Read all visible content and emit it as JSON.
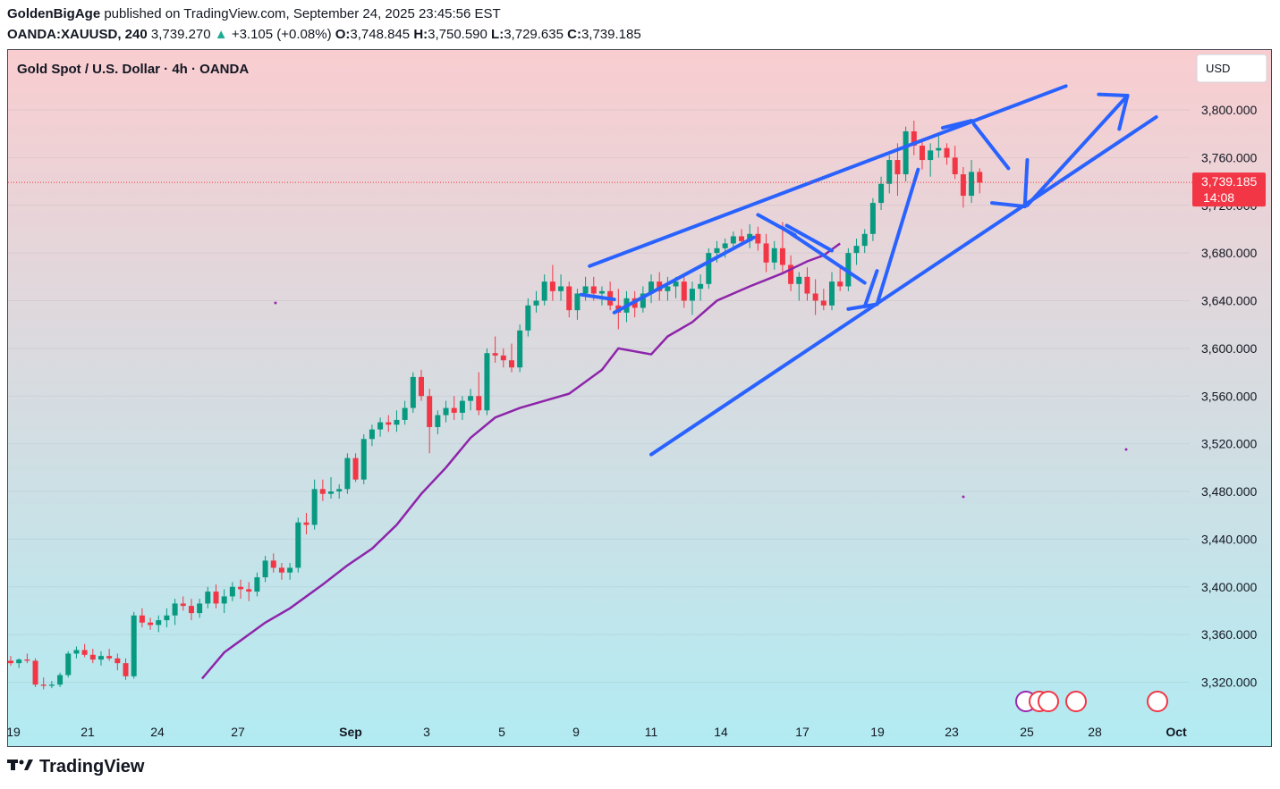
{
  "header": {
    "author": "GoldenBigAge",
    "published_text": "published on TradingView.com, September 24, 2025 23:45:56 EST",
    "symbol": "OANDA:XAUUSD, 240",
    "last": "3,739.270",
    "change_arrow": "▲",
    "change": "+3.105 (+0.08%)",
    "o_label": "O:",
    "o": "3,748.845",
    "h_label": "H:",
    "h": "3,750.590",
    "l_label": "L:",
    "l": "3,729.635",
    "c_label": "C:",
    "c": "3,739.185"
  },
  "chart_data": {
    "type": "candlestick",
    "title": "Gold Spot / U.S. Dollar · 4h · OANDA",
    "currency_button": "USD",
    "y_ticks": [
      3320,
      3360,
      3400,
      3440,
      3480,
      3520,
      3560,
      3600,
      3640,
      3680,
      3720,
      3760,
      3800
    ],
    "y_tick_labels": [
      "3,320.000",
      "3,360.000",
      "3,400.000",
      "3,440.000",
      "3,480.000",
      "3,520.000",
      "3,560.000",
      "3,600.000",
      "3,640.000",
      "3,680.000",
      "3,720.000",
      "3,760.000",
      "3,800.000"
    ],
    "x_labels": [
      "19",
      "21",
      "24",
      "27",
      "Sep",
      "3",
      "5",
      "9",
      "11",
      "14",
      "17",
      "19",
      "23",
      "25",
      "28",
      "Oct"
    ],
    "current_price_label": "3,739.185",
    "countdown_label": "14:08",
    "current_price": 3739.185,
    "background_gradient": [
      "#f9cdd0",
      "#b2ebf2"
    ],
    "colors": {
      "up": "#089981",
      "down": "#f23645",
      "ma": "#8e24aa",
      "drawings": "#2962ff",
      "price_tag": "#f23645"
    },
    "moving_average": [
      [
        23.3,
        3323
      ],
      [
        26,
        3345
      ],
      [
        29,
        3360
      ],
      [
        31,
        3370
      ],
      [
        34,
        3382
      ],
      [
        38,
        3402
      ],
      [
        41,
        3418
      ],
      [
        44,
        3432
      ],
      [
        47,
        3452
      ],
      [
        50,
        3478
      ],
      [
        53,
        3500
      ],
      [
        56,
        3525
      ],
      [
        59,
        3542
      ],
      [
        62,
        3550
      ],
      [
        65,
        3556
      ],
      [
        68,
        3562
      ],
      [
        72,
        3582
      ],
      [
        74,
        3600
      ],
      [
        75.5,
        3633
      ],
      [
        76.8,
        3565
      ],
      [
        78,
        3595
      ],
      [
        80,
        3610
      ],
      [
        83,
        3622
      ],
      [
        86,
        3640
      ],
      [
        90,
        3652
      ],
      [
        94,
        3663
      ],
      [
        97,
        3673
      ],
      [
        99,
        3678
      ],
      [
        101,
        3688
      ]
    ],
    "candles": [
      [
        0,
        3338,
        3342,
        3334,
        3336
      ],
      [
        1,
        3336,
        3340,
        3332,
        3339
      ],
      [
        2,
        3339,
        3344,
        3336,
        3338
      ],
      [
        3,
        3338,
        3340,
        3316,
        3318
      ],
      [
        4,
        3318,
        3324,
        3314,
        3317
      ],
      [
        5,
        3317,
        3321,
        3315,
        3318
      ],
      [
        6,
        3318,
        3328,
        3316,
        3326
      ],
      [
        7,
        3326,
        3346,
        3324,
        3344
      ],
      [
        8,
        3344,
        3350,
        3340,
        3347
      ],
      [
        9,
        3347,
        3352,
        3341,
        3343
      ],
      [
        10,
        3343,
        3348,
        3336,
        3339
      ],
      [
        11,
        3339,
        3346,
        3334,
        3342
      ],
      [
        12,
        3342,
        3348,
        3338,
        3340
      ],
      [
        13,
        3340,
        3344,
        3330,
        3336
      ],
      [
        14,
        3336,
        3340,
        3322,
        3325
      ],
      [
        15,
        3325,
        3379,
        3323,
        3376
      ],
      [
        16,
        3376,
        3382,
        3366,
        3370
      ],
      [
        17,
        3370,
        3374,
        3364,
        3368
      ],
      [
        18,
        3368,
        3376,
        3362,
        3372
      ],
      [
        19,
        3372,
        3382,
        3366,
        3376
      ],
      [
        20,
        3376,
        3390,
        3368,
        3386
      ],
      [
        21,
        3386,
        3392,
        3380,
        3384
      ],
      [
        22,
        3384,
        3390,
        3372,
        3378
      ],
      [
        23,
        3378,
        3390,
        3374,
        3386
      ],
      [
        24,
        3386,
        3400,
        3382,
        3396
      ],
      [
        25,
        3396,
        3402,
        3382,
        3386
      ],
      [
        26,
        3386,
        3398,
        3378,
        3392
      ],
      [
        27,
        3392,
        3404,
        3388,
        3400
      ],
      [
        28,
        3400,
        3406,
        3390,
        3398
      ],
      [
        29,
        3398,
        3404,
        3388,
        3396
      ],
      [
        30,
        3396,
        3412,
        3392,
        3408
      ],
      [
        31,
        3408,
        3426,
        3404,
        3422
      ],
      [
        32,
        3422,
        3428,
        3412,
        3416
      ],
      [
        33,
        3416,
        3420,
        3406,
        3412
      ],
      [
        34,
        3412,
        3420,
        3406,
        3416
      ],
      [
        35,
        3416,
        3458,
        3412,
        3454
      ],
      [
        36,
        3454,
        3462,
        3444,
        3452
      ],
      [
        37,
        3452,
        3490,
        3448,
        3482
      ],
      [
        38,
        3482,
        3490,
        3472,
        3478
      ],
      [
        39,
        3478,
        3492,
        3474,
        3480
      ],
      [
        40,
        3480,
        3486,
        3474,
        3482
      ],
      [
        41,
        3482,
        3512,
        3478,
        3508
      ],
      [
        42,
        3508,
        3512,
        3488,
        3490
      ],
      [
        43,
        3490,
        3528,
        3486,
        3524
      ],
      [
        44,
        3524,
        3536,
        3518,
        3532
      ],
      [
        45,
        3532,
        3542,
        3526,
        3538
      ],
      [
        46,
        3538,
        3544,
        3530,
        3536
      ],
      [
        47,
        3536,
        3548,
        3530,
        3540
      ],
      [
        48,
        3540,
        3556,
        3536,
        3550
      ],
      [
        49,
        3550,
        3580,
        3546,
        3576
      ],
      [
        50,
        3576,
        3582,
        3556,
        3560
      ],
      [
        51,
        3560,
        3566,
        3512,
        3534
      ],
      [
        52,
        3534,
        3548,
        3528,
        3544
      ],
      [
        53,
        3544,
        3556,
        3538,
        3550
      ],
      [
        54,
        3550,
        3560,
        3540,
        3546
      ],
      [
        55,
        3546,
        3560,
        3540,
        3556
      ],
      [
        56,
        3556,
        3566,
        3548,
        3560
      ],
      [
        57,
        3560,
        3580,
        3544,
        3548
      ],
      [
        58,
        3548,
        3600,
        3544,
        3596
      ],
      [
        59,
        3596,
        3610,
        3588,
        3594
      ],
      [
        60,
        3594,
        3600,
        3584,
        3590
      ],
      [
        61,
        3590,
        3604,
        3580,
        3584
      ],
      [
        62,
        3584,
        3620,
        3580,
        3615
      ],
      [
        63,
        3615,
        3642,
        3610,
        3636
      ],
      [
        64,
        3636,
        3648,
        3630,
        3640
      ],
      [
        65,
        3640,
        3662,
        3636,
        3656
      ],
      [
        66,
        3656,
        3670,
        3640,
        3648
      ],
      [
        67,
        3648,
        3662,
        3640,
        3652
      ],
      [
        68,
        3652,
        3656,
        3626,
        3632
      ],
      [
        69,
        3632,
        3650,
        3624,
        3646
      ],
      [
        70,
        3646,
        3660,
        3640,
        3652
      ],
      [
        71,
        3652,
        3660,
        3640,
        3646
      ],
      [
        72,
        3646,
        3652,
        3636,
        3648
      ],
      [
        73,
        3648,
        3656,
        3632,
        3636
      ],
      [
        74,
        3636,
        3650,
        3616,
        3630
      ],
      [
        75,
        3630,
        3648,
        3622,
        3642
      ],
      [
        76,
        3642,
        3648,
        3626,
        3634
      ],
      [
        77,
        3634,
        3652,
        3630,
        3646
      ],
      [
        78,
        3646,
        3662,
        3638,
        3656
      ],
      [
        79,
        3656,
        3664,
        3640,
        3648
      ],
      [
        80,
        3648,
        3660,
        3640,
        3652
      ],
      [
        81,
        3652,
        3660,
        3642,
        3656
      ],
      [
        82,
        3656,
        3662,
        3634,
        3640
      ],
      [
        83,
        3640,
        3656,
        3628,
        3650
      ],
      [
        84,
        3650,
        3662,
        3640,
        3654
      ],
      [
        85,
        3654,
        3684,
        3650,
        3680
      ],
      [
        86,
        3680,
        3690,
        3672,
        3684
      ],
      [
        87,
        3684,
        3692,
        3676,
        3688
      ],
      [
        88,
        3688,
        3698,
        3682,
        3694
      ],
      [
        89,
        3694,
        3700,
        3686,
        3690
      ],
      [
        90,
        3690,
        3704,
        3684,
        3696
      ],
      [
        91,
        3696,
        3702,
        3682,
        3688
      ],
      [
        92,
        3688,
        3696,
        3664,
        3672
      ],
      [
        93,
        3672,
        3690,
        3666,
        3684
      ],
      [
        94,
        3684,
        3706,
        3664,
        3670
      ],
      [
        95,
        3670,
        3678,
        3648,
        3654
      ],
      [
        96,
        3654,
        3664,
        3640,
        3660
      ],
      [
        97,
        3660,
        3668,
        3640,
        3646
      ],
      [
        98,
        3646,
        3658,
        3628,
        3640
      ],
      [
        99,
        3640,
        3650,
        3632,
        3636
      ],
      [
        100,
        3636,
        3664,
        3632,
        3656
      ],
      [
        101,
        3656,
        3670,
        3648,
        3652
      ],
      [
        102,
        3652,
        3684,
        3648,
        3680
      ],
      [
        103,
        3680,
        3692,
        3670,
        3686
      ],
      [
        104,
        3686,
        3700,
        3680,
        3696
      ],
      [
        105,
        3696,
        3726,
        3690,
        3722
      ],
      [
        106,
        3722,
        3744,
        3716,
        3738
      ],
      [
        107,
        3738,
        3762,
        3730,
        3758
      ],
      [
        108,
        3758,
        3772,
        3728,
        3746
      ],
      [
        109,
        3746,
        3786,
        3740,
        3782
      ],
      [
        110,
        3782,
        3791,
        3762,
        3770
      ],
      [
        111,
        3770,
        3774,
        3750,
        3758
      ],
      [
        112,
        3758,
        3772,
        3744,
        3766
      ],
      [
        113,
        3766,
        3778,
        3760,
        3768
      ],
      [
        114,
        3768,
        3772,
        3754,
        3760
      ],
      [
        115,
        3760,
        3770,
        3742,
        3746
      ],
      [
        116,
        3746,
        3752,
        3718,
        3728
      ],
      [
        117,
        3728,
        3758,
        3722,
        3748
      ],
      [
        118,
        3748,
        3751,
        3730,
        3739
      ]
    ]
  }
}
